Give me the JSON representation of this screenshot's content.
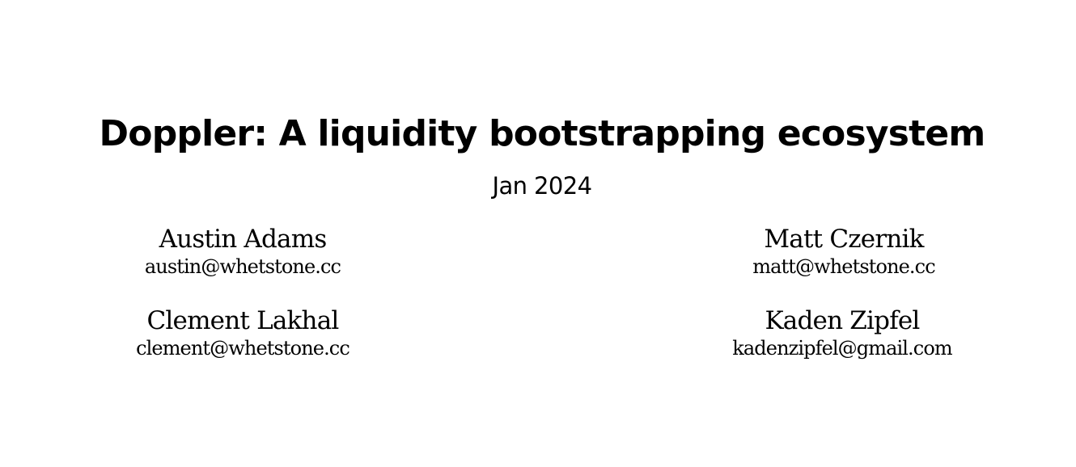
{
  "paper": {
    "title": "Doppler: A liquidity bootstrapping ecosystem",
    "date": "Jan 2024",
    "authors": [
      {
        "name": "Austin Adams",
        "email": "austin@whetstone.cc"
      },
      {
        "name": "Matt Czernik",
        "email": "matt@whetstone.cc"
      },
      {
        "name": "Clement Lakhal",
        "email": "clement@whetstone.cc"
      },
      {
        "name": "Kaden Zipfel",
        "email": "kadenzipfel@gmail.com"
      }
    ]
  }
}
